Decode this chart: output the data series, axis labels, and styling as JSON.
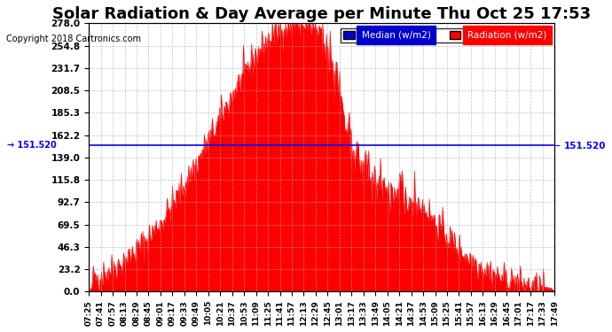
{
  "title": "Solar Radiation & Day Average per Minute Thu Oct 25 17:53",
  "copyright": "Copyright 2018 Cartronics.com",
  "median_value": 151.52,
  "median_label": "151.520",
  "y_ticks": [
    0.0,
    23.2,
    46.3,
    69.5,
    92.7,
    115.8,
    139.0,
    162.2,
    185.3,
    208.5,
    231.7,
    254.8,
    278.0
  ],
  "y_max": 278.0,
  "y_min": 0.0,
  "fill_color": "#FF0000",
  "line_color": "#FF0000",
  "median_line_color": "#0000FF",
  "background_color": "#FFFFFF",
  "grid_color": "#AAAAAA",
  "title_fontsize": 13,
  "x_labels": [
    "07:25",
    "07:41",
    "07:57",
    "08:13",
    "08:29",
    "08:45",
    "09:01",
    "09:17",
    "09:33",
    "09:49",
    "10:05",
    "10:21",
    "10:37",
    "10:53",
    "11:09",
    "11:25",
    "11:41",
    "11:57",
    "12:13",
    "12:29",
    "12:45",
    "13:01",
    "13:17",
    "13:33",
    "13:49",
    "14:05",
    "14:21",
    "14:37",
    "14:53",
    "15:09",
    "15:25",
    "15:41",
    "15:57",
    "16:13",
    "16:29",
    "16:45",
    "17:01",
    "17:17",
    "17:33",
    "17:49"
  ],
  "legend_median_color": "#0000CD",
  "legend_radiation_color": "#FF0000",
  "legend_median_bg": "#0000CD",
  "legend_radiation_bg": "#FF0000"
}
